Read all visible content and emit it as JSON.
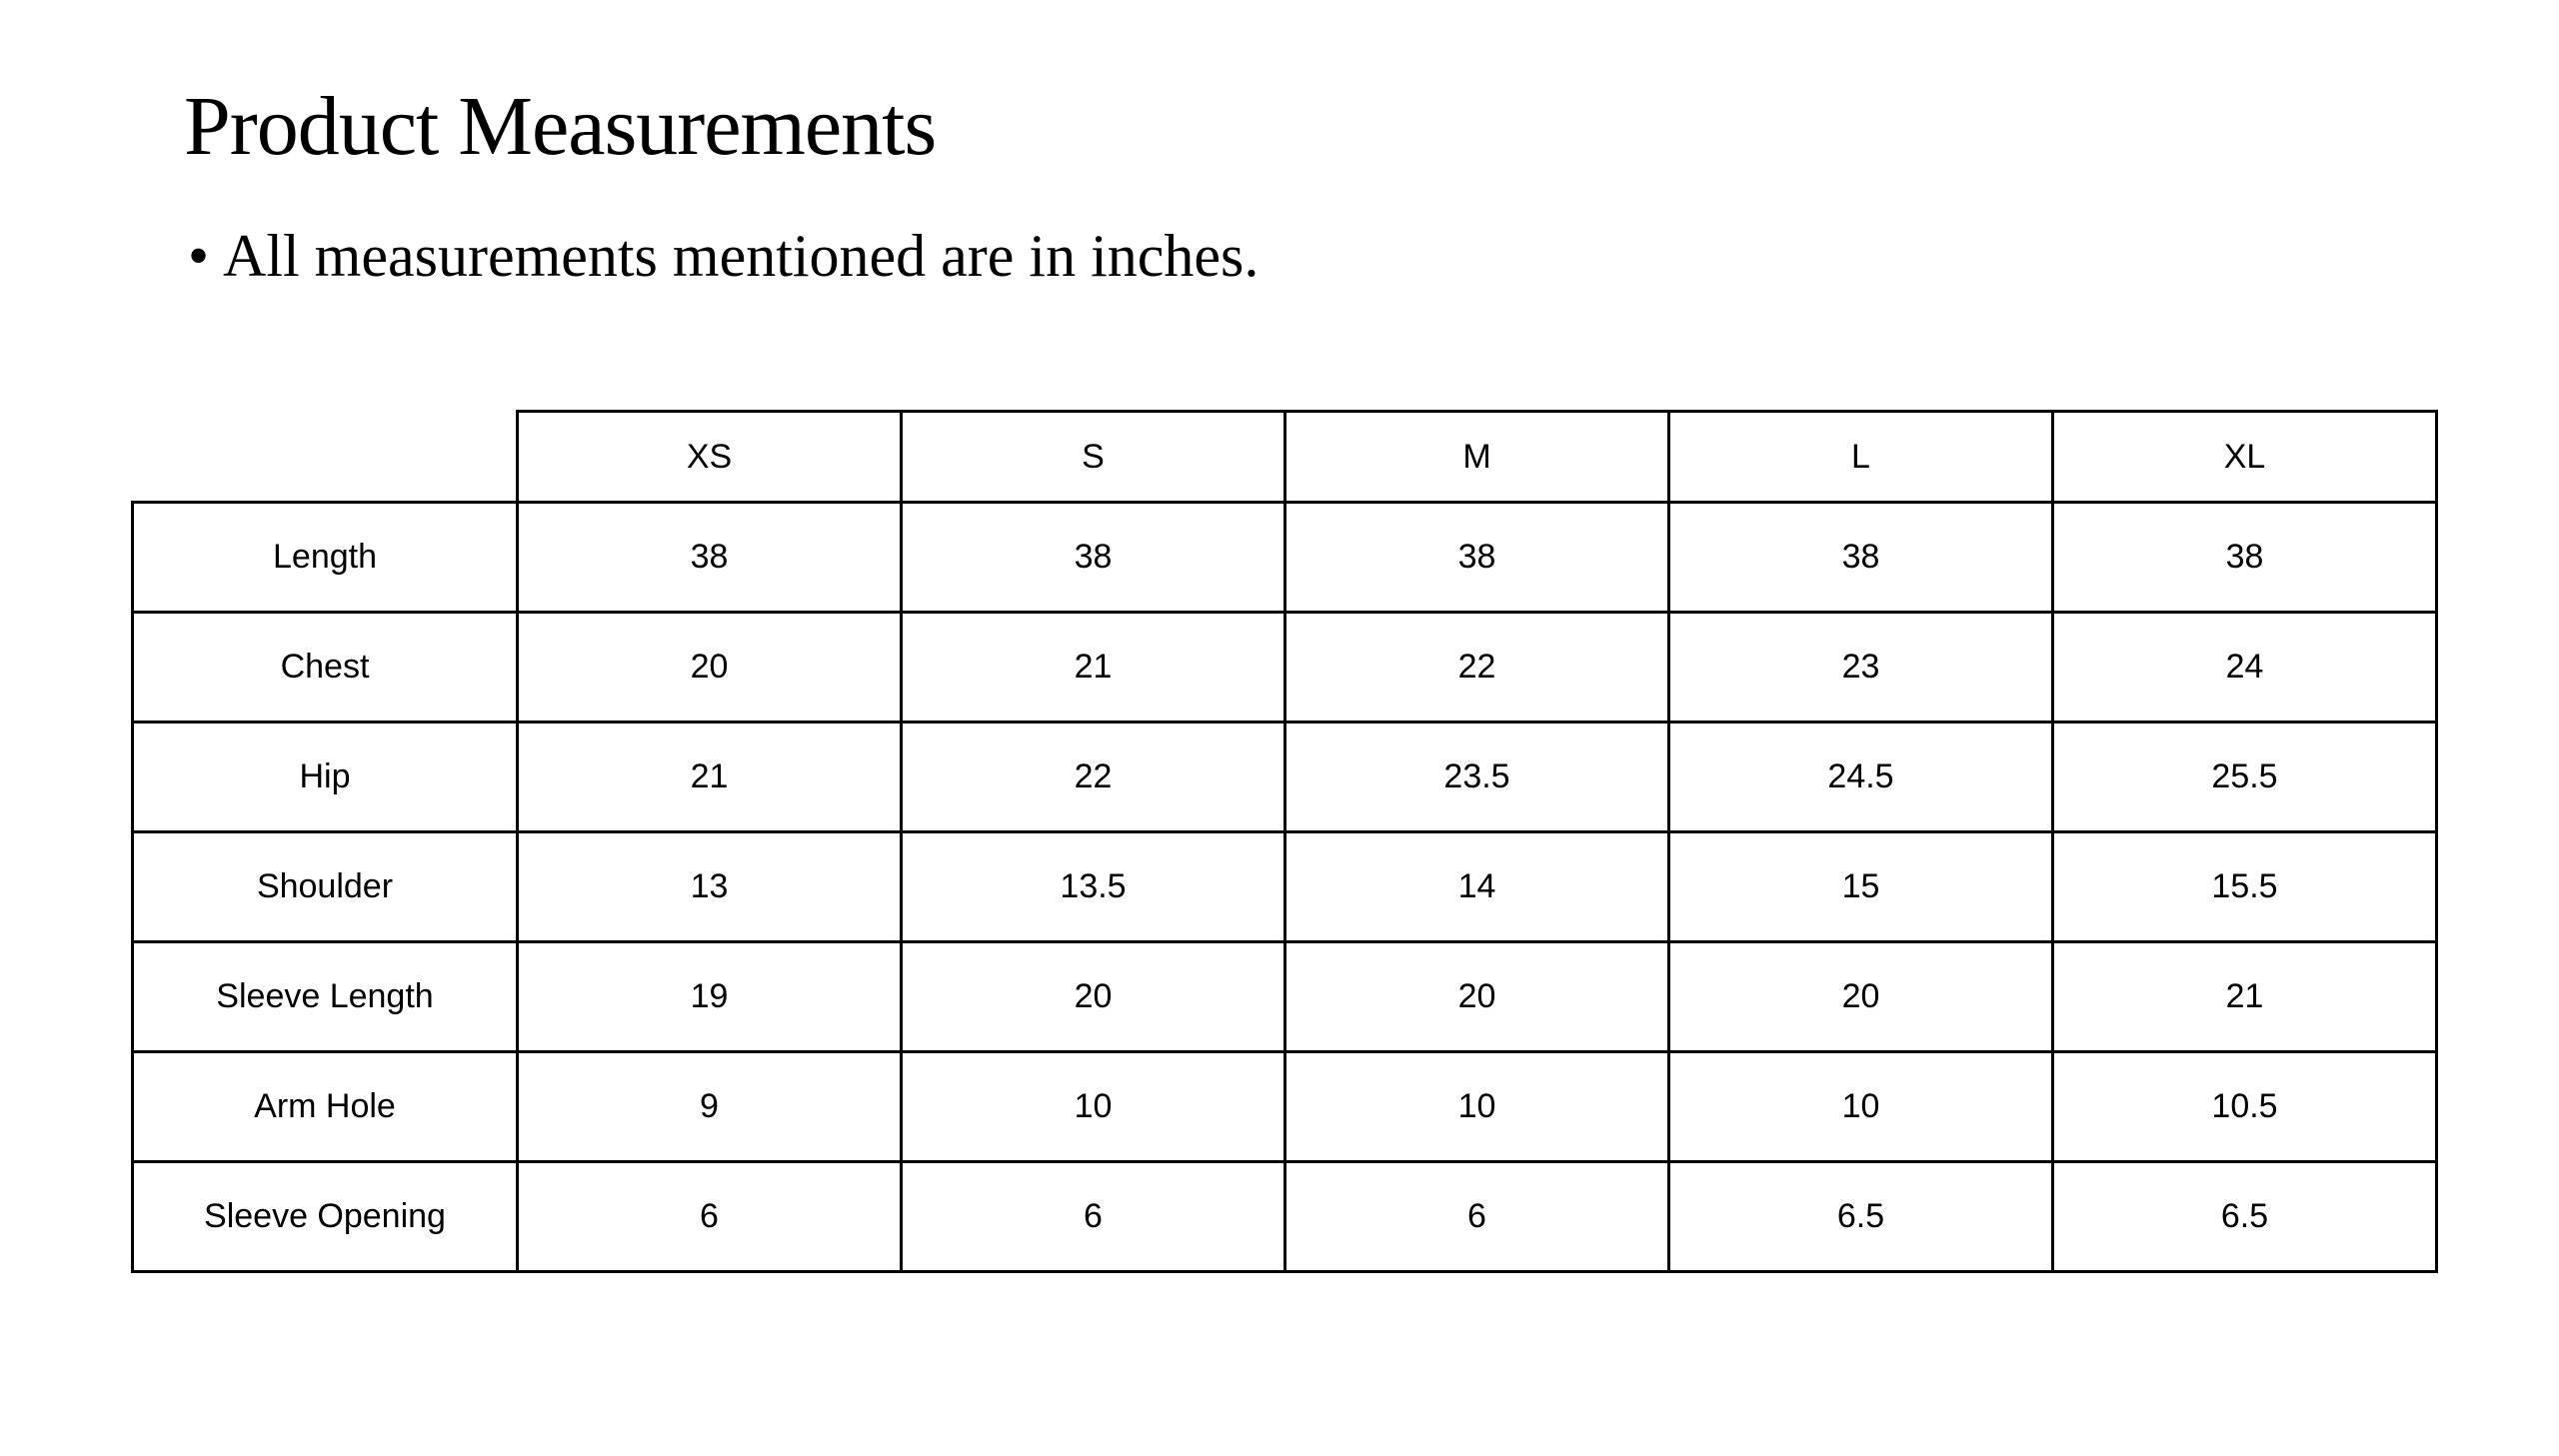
{
  "title": "Product Measurements",
  "bullet": "All measurements mentioned are in inches.",
  "table": {
    "columns": [
      "XS",
      "S",
      "M",
      "L",
      "XL"
    ],
    "rows": [
      {
        "label": "Length",
        "values": [
          "38",
          "38",
          "38",
          "38",
          "38"
        ]
      },
      {
        "label": "Chest",
        "values": [
          "20",
          "21",
          "22",
          "23",
          "24"
        ]
      },
      {
        "label": "Hip",
        "values": [
          "21",
          "22",
          "23.5",
          "24.5",
          "25.5"
        ]
      },
      {
        "label": "Shoulder",
        "values": [
          "13",
          "13.5",
          "14",
          "15",
          "15.5"
        ]
      },
      {
        "label": "Sleeve Length",
        "values": [
          "19",
          "20",
          "20",
          "20",
          "21"
        ]
      },
      {
        "label": "Arm Hole",
        "values": [
          "9",
          "10",
          "10",
          "10",
          "10.5"
        ]
      },
      {
        "label": "Sleeve Opening",
        "values": [
          "6",
          "6",
          "6",
          "6.5",
          "6.5"
        ]
      }
    ]
  }
}
